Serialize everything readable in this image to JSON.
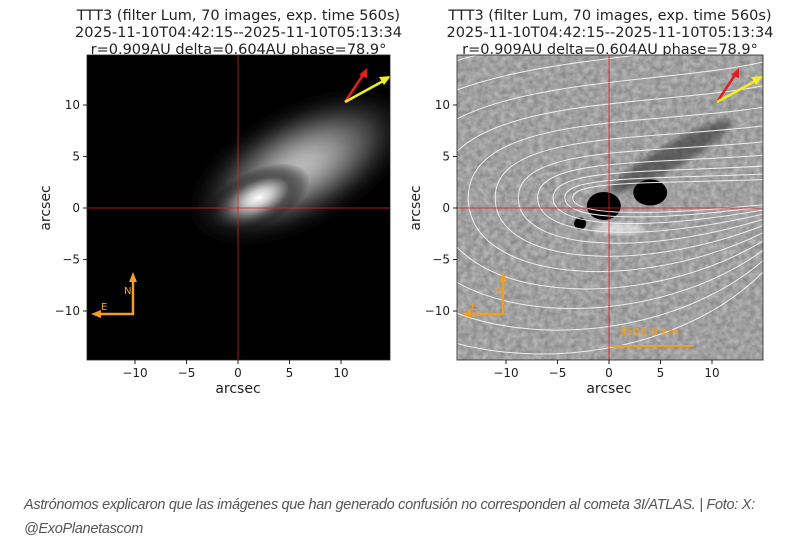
{
  "panels": [
    {
      "title_lines": [
        "TTT3 (filter Lum, 70 images, exp. time 560s)",
        "2025-11-10T04:42:15--2025-11-10T05:13:34",
        "r=0.909AU delta=0.604AU phase=78.9°"
      ],
      "xlabel": "arcsec",
      "ylabel": "arcsec",
      "type": "image",
      "compass": {
        "north": "N",
        "east": "E"
      }
    },
    {
      "title_lines": [
        "TTT3 (filter Lum, 70 images, exp. time 560s)",
        "2025-11-10T04:42:15--2025-11-10T05:13:34",
        "r=0.909AU delta=0.604AU phase=78.9°"
      ],
      "xlabel": "arcsec",
      "ylabel": "arcsec",
      "type": "processed-image-with-contours",
      "compass": {
        "north": "N",
        "east": "E"
      },
      "scale_bar": "3506.0 km"
    }
  ],
  "ticks": {
    "x": [
      "−10",
      "−5",
      "0",
      "5",
      "10"
    ],
    "y": [
      "10",
      "5",
      "0",
      "−5",
      "−10"
    ]
  },
  "tick_values": [
    -10,
    -5,
    0,
    5,
    10
  ],
  "axis_range": [
    -15,
    15
  ],
  "colors": {
    "crosshair": "#d62020",
    "compass": "#f0a020",
    "arrow_red": "#e02020",
    "arrow_yellow": "#f0f020"
  },
  "caption": "Astrónomos explicaron que las imágenes que han generado confusión no corresponden al cometa 3I/ATLAS. | Foto: X: @ExoPlanetascom"
}
